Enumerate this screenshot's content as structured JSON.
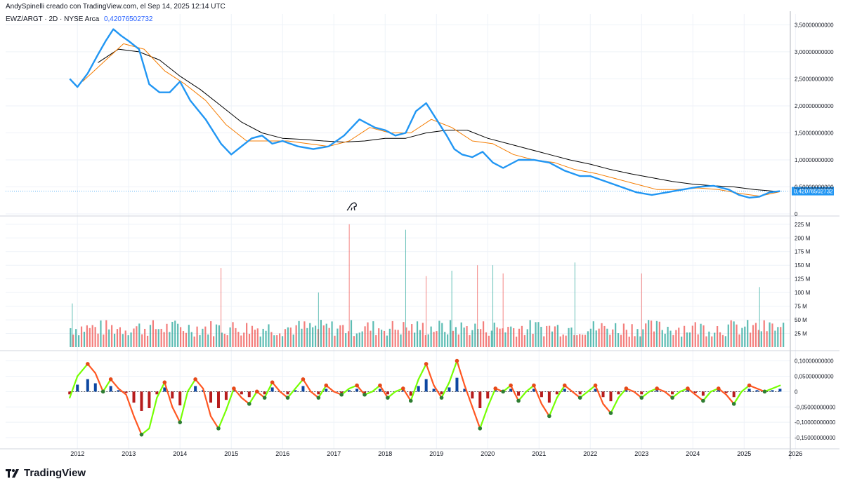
{
  "header": {
    "credit": "AndySpinelli creado con TradingView.com, el Sep 14, 2025 12:14 UTC"
  },
  "legend": {
    "symbol": "EWZ/ARGT · 2D · NYSE Arca",
    "value": "0,42076502732"
  },
  "brand": {
    "name": "TradingView",
    "logo_icon": "tradingview-logo-icon"
  },
  "colors": {
    "price": "#2196f3",
    "ma_fast": "#f57c00",
    "ma_slow": "#000000",
    "vol_up": "#26a69a",
    "vol_down": "#ef5350",
    "osc_up": "#76ff03",
    "osc_down": "#ff5722",
    "hist_pos": "#0d47a1",
    "hist_neg": "#b71c1c"
  },
  "chart_data": [
    {
      "type": "line",
      "title": "EWZ/ARGT · 2D · NYSE Arca",
      "last_value_label": "0,42076502732",
      "y_ticks": [
        "3,50000000000",
        "3,00000000000",
        "2,50000000000",
        "2,00000000000",
        "1,50000000000",
        "1,00000000000",
        "0,50000000000",
        "0"
      ],
      "y_tick_values": [
        3.5,
        3.0,
        2.5,
        2.0,
        1.5,
        1.0,
        0.5,
        0
      ],
      "ylim": [
        0,
        3.7
      ],
      "xlim": [
        2010.6,
        2025.9
      ],
      "series": [
        {
          "key": "price",
          "x": [
            2011.85,
            2012.0,
            2012.2,
            2012.4,
            2012.55,
            2012.7,
            2012.85,
            2013.0,
            2013.2,
            2013.4,
            2013.6,
            2013.8,
            2014.0,
            2014.2,
            2014.5,
            2014.8,
            2015.0,
            2015.2,
            2015.4,
            2015.6,
            2015.8,
            2016.0,
            2016.3,
            2016.6,
            2016.9,
            2017.2,
            2017.5,
            2017.8,
            2018.0,
            2018.2,
            2018.4,
            2018.6,
            2018.8,
            2019.0,
            2019.2,
            2019.35,
            2019.5,
            2019.7,
            2019.9,
            2020.1,
            2020.3,
            2020.6,
            2020.9,
            2021.2,
            2021.5,
            2021.8,
            2022.0,
            2022.3,
            2022.6,
            2022.9,
            2023.2,
            2023.5,
            2023.8,
            2024.1,
            2024.4,
            2024.7,
            2024.9,
            2025.1,
            2025.3,
            2025.5,
            2025.7
          ],
          "y": [
            2.5,
            2.35,
            2.6,
            2.95,
            3.2,
            3.42,
            3.3,
            3.2,
            3.05,
            2.4,
            2.25,
            2.25,
            2.45,
            2.1,
            1.75,
            1.3,
            1.1,
            1.25,
            1.4,
            1.45,
            1.3,
            1.35,
            1.25,
            1.2,
            1.25,
            1.45,
            1.75,
            1.6,
            1.55,
            1.45,
            1.5,
            1.9,
            2.05,
            1.75,
            1.45,
            1.2,
            1.1,
            1.05,
            1.15,
            0.95,
            0.85,
            1.0,
            1.0,
            0.95,
            0.8,
            0.7,
            0.7,
            0.6,
            0.5,
            0.4,
            0.35,
            0.4,
            0.45,
            0.5,
            0.52,
            0.45,
            0.35,
            0.3,
            0.32,
            0.4,
            0.42
          ]
        },
        {
          "key": "ma_fast",
          "x": [
            2012.1,
            2012.5,
            2012.9,
            2013.3,
            2013.7,
            2014.1,
            2014.5,
            2014.9,
            2015.3,
            2015.7,
            2016.1,
            2016.5,
            2016.9,
            2017.3,
            2017.7,
            2018.1,
            2018.5,
            2018.9,
            2019.3,
            2019.7,
            2020.1,
            2020.5,
            2020.9,
            2021.3,
            2021.7,
            2022.1,
            2022.5,
            2022.9,
            2023.3,
            2023.7,
            2024.1,
            2024.5,
            2024.9,
            2025.3,
            2025.7
          ],
          "y": [
            2.45,
            2.8,
            3.15,
            3.05,
            2.65,
            2.4,
            2.1,
            1.65,
            1.35,
            1.35,
            1.35,
            1.3,
            1.25,
            1.35,
            1.6,
            1.5,
            1.5,
            1.75,
            1.6,
            1.35,
            1.3,
            1.1,
            1.0,
            0.95,
            0.82,
            0.75,
            0.65,
            0.55,
            0.45,
            0.45,
            0.48,
            0.45,
            0.38,
            0.33,
            0.41
          ]
        },
        {
          "key": "ma_slow",
          "x": [
            2012.4,
            2012.8,
            2013.2,
            2013.6,
            2014.0,
            2014.4,
            2014.8,
            2015.2,
            2015.6,
            2016.0,
            2016.4,
            2016.8,
            2017.2,
            2017.6,
            2018.0,
            2018.4,
            2018.8,
            2019.2,
            2019.6,
            2020.0,
            2020.4,
            2020.8,
            2021.2,
            2021.6,
            2022.0,
            2022.4,
            2022.8,
            2023.2,
            2023.6,
            2024.0,
            2024.4,
            2024.8,
            2025.2,
            2025.7
          ],
          "y": [
            2.8,
            3.05,
            3.0,
            2.85,
            2.55,
            2.3,
            2.0,
            1.7,
            1.5,
            1.4,
            1.38,
            1.35,
            1.33,
            1.35,
            1.4,
            1.4,
            1.5,
            1.55,
            1.55,
            1.4,
            1.3,
            1.2,
            1.1,
            1.0,
            0.92,
            0.82,
            0.74,
            0.67,
            0.6,
            0.55,
            0.52,
            0.5,
            0.45,
            0.41
          ]
        }
      ]
    },
    {
      "type": "bar",
      "title": "Volume",
      "y_ticks": [
        "225 M",
        "200 M",
        "175 M",
        "150 M",
        "125 M",
        "100 M",
        "75 M",
        "50 M",
        "25 M"
      ],
      "y_tick_values": [
        225,
        200,
        175,
        150,
        125,
        100,
        75,
        50,
        25
      ],
      "ylim": [
        0,
        235
      ],
      "xlim": [
        2010.6,
        2025.9
      ],
      "spikes": [
        {
          "x": 2011.9,
          "value": 80
        },
        {
          "x": 2014.8,
          "value": 145
        },
        {
          "x": 2016.7,
          "value": 100
        },
        {
          "x": 2017.3,
          "value": 225
        },
        {
          "x": 2018.4,
          "value": 215
        },
        {
          "x": 2018.8,
          "value": 130
        },
        {
          "x": 2019.3,
          "value": 140
        },
        {
          "x": 2019.8,
          "value": 150
        },
        {
          "x": 2020.1,
          "value": 150
        },
        {
          "x": 2020.3,
          "value": 135
        },
        {
          "x": 2021.7,
          "value": 155
        },
        {
          "x": 2023.0,
          "value": 135
        },
        {
          "x": 2025.3,
          "value": 110
        }
      ],
      "baseline_level": 35
    },
    {
      "type": "line",
      "title": "Oscillator",
      "y_ticks": [
        "0,10000000000",
        "0,05000000000",
        "0",
        "-0,05000000000",
        "-0,10000000000",
        "-0,15000000000"
      ],
      "y_tick_values": [
        0.1,
        0.05,
        0,
        -0.05,
        -0.1,
        -0.15
      ],
      "ylim": [
        -0.175,
        0.115
      ],
      "xlim": [
        2010.6,
        2025.9
      ],
      "series": [
        {
          "key": "oscillator",
          "x": [
            2011.85,
            2012.0,
            2012.2,
            2012.35,
            2012.5,
            2012.65,
            2012.8,
            2012.95,
            2013.1,
            2013.25,
            2013.4,
            2013.55,
            2013.7,
            2013.85,
            2014.0,
            2014.15,
            2014.3,
            2014.45,
            2014.6,
            2014.75,
            2014.9,
            2015.05,
            2015.2,
            2015.35,
            2015.5,
            2015.65,
            2015.8,
            2015.95,
            2016.1,
            2016.25,
            2016.4,
            2016.55,
            2016.7,
            2016.85,
            2017.0,
            2017.15,
            2017.3,
            2017.45,
            2017.6,
            2017.75,
            2017.9,
            2018.05,
            2018.2,
            2018.35,
            2018.5,
            2018.65,
            2018.8,
            2018.95,
            2019.1,
            2019.25,
            2019.4,
            2019.55,
            2019.7,
            2019.85,
            2020.0,
            2020.15,
            2020.3,
            2020.45,
            2020.6,
            2020.75,
            2020.9,
            2021.05,
            2021.2,
            2021.35,
            2021.5,
            2021.65,
            2021.8,
            2021.95,
            2022.1,
            2022.25,
            2022.4,
            2022.55,
            2022.7,
            2022.85,
            2023.0,
            2023.15,
            2023.3,
            2023.45,
            2023.6,
            2023.75,
            2023.9,
            2024.05,
            2024.2,
            2024.35,
            2024.5,
            2024.65,
            2024.8,
            2024.95,
            2025.1,
            2025.25,
            2025.4,
            2025.55,
            2025.7
          ],
          "y": [
            -0.02,
            0.05,
            0.09,
            0.06,
            0.0,
            0.04,
            0.01,
            -0.01,
            -0.08,
            -0.14,
            -0.12,
            -0.02,
            0.03,
            -0.05,
            -0.1,
            0.0,
            0.04,
            0.01,
            -0.08,
            -0.12,
            -0.06,
            0.01,
            -0.02,
            -0.04,
            0.0,
            -0.02,
            0.03,
            0.0,
            -0.02,
            0.01,
            0.04,
            0.0,
            -0.02,
            0.02,
            0.0,
            -0.01,
            0.01,
            0.02,
            -0.01,
            0.0,
            0.02,
            -0.02,
            0.0,
            0.01,
            -0.03,
            0.04,
            0.09,
            0.02,
            -0.02,
            0.03,
            0.1,
            0.02,
            -0.05,
            -0.12,
            -0.05,
            0.01,
            0.0,
            0.02,
            -0.03,
            0.0,
            0.02,
            -0.04,
            -0.08,
            -0.02,
            0.02,
            0.0,
            -0.02,
            0.0,
            0.02,
            -0.04,
            -0.07,
            -0.02,
            0.01,
            0.0,
            -0.02,
            0.0,
            0.01,
            0.0,
            -0.02,
            0.0,
            0.01,
            -0.01,
            -0.03,
            0.0,
            0.01,
            -0.01,
            -0.04,
            0.0,
            0.02,
            0.01,
            0.0,
            0.01,
            0.02
          ]
        }
      ]
    }
  ],
  "x_axis": {
    "tick_labels": [
      "2012",
      "2013",
      "2014",
      "2015",
      "2016",
      "2017",
      "2018",
      "2019",
      "2020",
      "2021",
      "2022",
      "2023",
      "2024",
      "2025",
      "2026"
    ],
    "tick_values": [
      2012,
      2013,
      2014,
      2015,
      2016,
      2017,
      2018,
      2019,
      2020,
      2021,
      2022,
      2023,
      2024,
      2025,
      2026
    ]
  }
}
